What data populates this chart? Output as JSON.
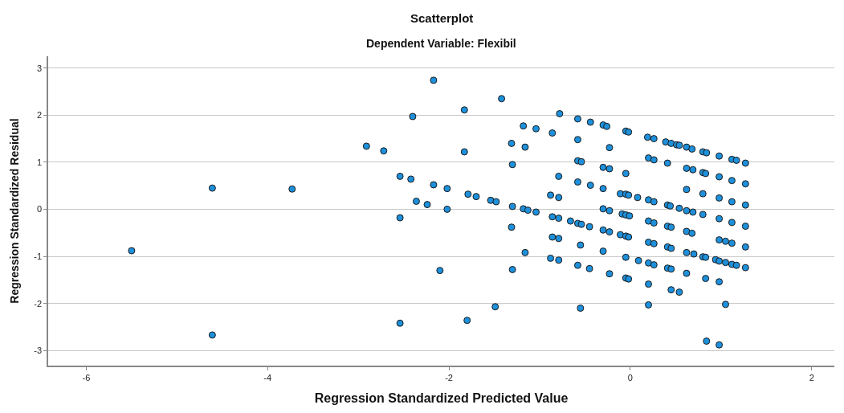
{
  "chart_data": {
    "type": "scatter",
    "title": "Scatterplot",
    "subtitle": "Dependent Variable: Flexibil",
    "xlabel": "Regression Standardized Predicted Value",
    "ylabel": "Regression Standardized Residual",
    "xlim": [
      -6.42,
      2.25
    ],
    "ylim": [
      -3.32,
      3.25
    ],
    "xticks": [
      -6,
      -4,
      -2,
      0,
      2
    ],
    "yticks": [
      -3,
      -2,
      -1,
      0,
      1,
      2,
      3
    ],
    "grid": "y",
    "marker": "circle",
    "series": [
      {
        "color": "#1e90db",
        "x": [
          -4.61,
          -3.73,
          -5.5,
          -4.61,
          -2.17,
          -1.42,
          -1.83,
          -2.4,
          -1.18,
          -2.91,
          -2.72,
          -1.83,
          -1.31,
          -1.16,
          -1.3,
          -2.54,
          -2.42,
          -2.17,
          -2.02,
          -1.79,
          -1.7,
          -1.54,
          -1.48,
          -1.3,
          -1.18,
          -2.36,
          -2.24,
          -2.02,
          -2.54,
          -1.31,
          -1.16,
          -2.1,
          -1.3,
          -1.49,
          -1.8,
          -2.54,
          -0.78,
          -0.58,
          -0.44,
          -0.3,
          -0.26,
          -0.05,
          -0.02,
          0.19,
          0.26,
          0.39,
          0.45,
          0.51,
          0.54,
          0.62,
          0.68,
          0.8,
          0.84,
          0.98,
          1.12,
          1.17,
          1.27,
          -1.04,
          -0.86,
          -0.58,
          -0.23,
          -0.58,
          -0.54,
          -0.3,
          -0.23,
          -0.05,
          0.2,
          0.26,
          0.41,
          0.62,
          0.69,
          0.8,
          0.83,
          0.98,
          1.12,
          1.27,
          -0.79,
          -0.58,
          -0.44,
          -0.3,
          -0.11,
          -0.05,
          -0.02,
          0.08,
          0.2,
          0.26,
          0.41,
          0.44,
          0.62,
          0.8,
          0.98,
          1.12,
          1.27,
          -0.88,
          -0.79,
          -1.13,
          -1.04,
          -0.86,
          -0.79,
          -0.66,
          -0.58,
          -0.54,
          -0.45,
          -0.3,
          -0.23,
          -0.09,
          -0.05,
          -0.01,
          0.54,
          0.62,
          0.69,
          0.8,
          0.98,
          1.12,
          1.27,
          0.2,
          0.26,
          0.41,
          0.45,
          0.62,
          0.68,
          -0.3,
          -0.23,
          -0.11,
          -0.05,
          -0.02,
          -0.86,
          -0.79,
          -0.55,
          -0.3,
          -0.88,
          -0.79,
          -0.58,
          -0.45,
          -0.23,
          -0.05,
          -0.02,
          0.2,
          0.45,
          0.54,
          -0.55,
          0.2,
          1.05,
          0.84,
          0.98,
          -0.05,
          0.09,
          0.2,
          0.26,
          0.41,
          0.45,
          0.62,
          0.83,
          0.98,
          0.62,
          0.7,
          0.8,
          0.83,
          0.94,
          0.98,
          1.05,
          1.12,
          1.17,
          1.27,
          0.98,
          1.05,
          1.12,
          1.27,
          0.2,
          0.26,
          0.41,
          0.45
        ],
        "values": [
          0.45,
          0.43,
          -0.88,
          -2.67,
          2.74,
          2.35,
          2.11,
          1.97,
          1.77,
          1.34,
          1.24,
          1.22,
          1.4,
          1.32,
          0.95,
          0.7,
          0.64,
          0.52,
          0.44,
          0.32,
          0.27,
          0.19,
          0.16,
          0.06,
          0.01,
          0.17,
          0.1,
          0.0,
          -0.18,
          -0.38,
          -0.92,
          -1.3,
          -1.28,
          -2.07,
          -2.36,
          -2.42,
          2.03,
          1.92,
          1.85,
          1.79,
          1.76,
          1.66,
          1.64,
          1.53,
          1.5,
          1.43,
          1.4,
          1.37,
          1.36,
          1.32,
          1.28,
          1.22,
          1.2,
          1.13,
          1.06,
          1.04,
          0.98,
          1.71,
          1.62,
          1.48,
          1.31,
          1.03,
          1.01,
          0.89,
          0.86,
          0.76,
          1.09,
          1.05,
          0.98,
          0.87,
          0.84,
          0.78,
          0.76,
          0.69,
          0.61,
          0.54,
          0.7,
          0.58,
          0.51,
          0.44,
          0.33,
          0.32,
          0.3,
          0.25,
          0.2,
          0.16,
          0.09,
          0.07,
          0.42,
          0.33,
          0.24,
          0.16,
          0.09,
          0.3,
          0.25,
          -0.02,
          -0.06,
          -0.16,
          -0.19,
          -0.25,
          -0.3,
          -0.32,
          -0.37,
          0.01,
          -0.03,
          -0.1,
          -0.12,
          -0.14,
          0.02,
          -0.03,
          -0.06,
          -0.11,
          -0.2,
          -0.28,
          -0.36,
          -0.25,
          -0.29,
          -0.36,
          -0.38,
          -0.47,
          -0.51,
          -0.44,
          -0.48,
          -0.54,
          -0.57,
          -0.59,
          -0.59,
          -0.62,
          -0.76,
          -0.89,
          -1.04,
          -1.08,
          -1.19,
          -1.26,
          -1.37,
          -1.46,
          -1.48,
          -1.59,
          -1.71,
          -1.76,
          -2.1,
          -2.03,
          -2.02,
          -2.8,
          -2.88,
          -1.02,
          -1.09,
          -1.14,
          -1.18,
          -1.25,
          -1.27,
          -1.36,
          -1.47,
          -1.54,
          -0.92,
          -0.95,
          -1.01,
          -1.02,
          -1.07,
          -1.1,
          -1.13,
          -1.17,
          -1.19,
          -1.24,
          -0.65,
          -0.68,
          -0.72,
          -0.8,
          -0.7,
          -0.73,
          -0.8,
          -0.83
        ]
      }
    ]
  }
}
